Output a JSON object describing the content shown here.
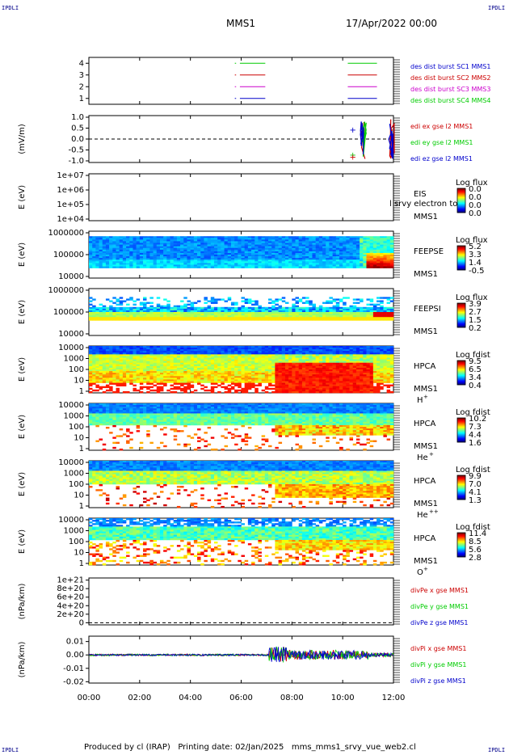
{
  "header": {
    "mission": "MMS1",
    "date": "17/Apr/2022 00:00",
    "corner_label": "IPDLI"
  },
  "footer": {
    "text": "Produced by cl (IRAP)   Printing date: 02/Jan/2025   mms_mms1_srvy_vue_web2.cl"
  },
  "colors": {
    "blue": "#0000cc",
    "red": "#cc0000",
    "green": "#00cc00",
    "magenta": "#cc00cc"
  },
  "chart_data": [
    {
      "type": "line",
      "panel": "burst",
      "ylim": [
        0.5,
        4.5
      ],
      "yticks": [
        "1",
        "2",
        "3",
        "4"
      ],
      "legend": [
        {
          "label": "des dist burst SC1 MMS1",
          "color": "#0000cc",
          "y": 1
        },
        {
          "label": "des dist burst SC2 MMS2",
          "color": "#cc0000",
          "y": 3
        },
        {
          "label": "des dist burst SC3 MMS3",
          "color": "#cc00cc",
          "y": 2
        },
        {
          "label": "des dist burst SC4 MMS4",
          "color": "#00cc00",
          "y": 4
        }
      ],
      "intervals": [
        [
          5.75,
          5.8
        ],
        [
          5.95,
          6.95
        ],
        [
          10.2,
          11.35
        ]
      ]
    },
    {
      "type": "line",
      "panel": "edi",
      "ylabel": "(mV/m)",
      "ylim": [
        -1.3,
        1.3
      ],
      "yticks": [
        "1.0",
        "0.5",
        "0.0",
        "-0.5",
        "-1.0"
      ],
      "legend": [
        {
          "label": "edi ex gse l2 MMS1",
          "color": "#cc0000"
        },
        {
          "label": "edi ey gse l2 MMS1",
          "color": "#00cc00"
        },
        {
          "label": "edi ez gse l2 MMS1",
          "color": "#0000cc"
        }
      ]
    },
    {
      "type": "heatmap",
      "panel": "EIS",
      "ylabel": "E (eV)",
      "yticks": [
        "1e+07",
        "1e+06",
        "1e+05",
        "1e+04"
      ],
      "instrument": "EIS",
      "spacecraft": "MMS1",
      "overlay_text": "l srvy electron to",
      "cbar_title": "Log flux",
      "cbar_ticks": [
        "0.0",
        "0.0",
        "0.0",
        "0.0"
      ]
    },
    {
      "type": "heatmap",
      "panel": "FEEPSE",
      "ylabel": "E (eV)",
      "yticks": [
        "1000000",
        "100000",
        "10000"
      ],
      "instrument": "FEEPSE",
      "spacecraft": "MMS1",
      "cbar_title": "Log flux",
      "cbar_ticks": [
        "5.2",
        "3.3",
        "1.4",
        "-0.5"
      ]
    },
    {
      "type": "heatmap",
      "panel": "FEEPSI",
      "ylabel": "E (eV)",
      "yticks": [
        "1000000",
        "100000",
        "10000"
      ],
      "instrument": "FEEPSI",
      "spacecraft": "MMS1",
      "cbar_title": "Log flux",
      "cbar_ticks": [
        "3.9",
        "2.7",
        "1.5",
        "0.2"
      ]
    },
    {
      "type": "heatmap",
      "panel": "HPCA H+",
      "ylabel": "E (eV)",
      "yticks": [
        "10000",
        "1000",
        "100",
        "10",
        "1"
      ],
      "instrument": "HPCA",
      "spacecraft": "MMS1",
      "species": "H",
      "charge": "+",
      "cbar_title": "Log fdist",
      "cbar_ticks": [
        "9.5",
        "6.5",
        "3.4",
        "0.4"
      ]
    },
    {
      "type": "heatmap",
      "panel": "HPCA He+",
      "ylabel": "E (eV)",
      "yticks": [
        "10000",
        "1000",
        "100",
        "10",
        "1"
      ],
      "instrument": "HPCA",
      "spacecraft": "MMS1",
      "species": "He",
      "charge": "+",
      "cbar_title": "Log fdist",
      "cbar_ticks": [
        "10.2",
        "7.3",
        "4.4",
        "1.6"
      ]
    },
    {
      "type": "heatmap",
      "panel": "HPCA He++",
      "ylabel": "E (eV)",
      "yticks": [
        "10000",
        "1000",
        "100",
        "10",
        "1"
      ],
      "instrument": "HPCA",
      "spacecraft": "MMS1",
      "species": "He",
      "charge": "++",
      "cbar_title": "Log fdist",
      "cbar_ticks": [
        "9.9",
        "7.0",
        "4.1",
        "1.3"
      ]
    },
    {
      "type": "heatmap",
      "panel": "HPCA O+",
      "ylabel": "E (eV)",
      "yticks": [
        "10000",
        "1000",
        "100",
        "10",
        "1"
      ],
      "instrument": "HPCA",
      "spacecraft": "MMS1",
      "species": "O",
      "charge": "+",
      "cbar_title": "Log fdist",
      "cbar_ticks": [
        "11.4",
        "8.5",
        "5.6",
        "2.8"
      ]
    },
    {
      "type": "line",
      "panel": "divPe",
      "ylabel": "(nPa/km)",
      "ylim": [
        -5e+19,
        1.05e+21
      ],
      "yticks": [
        "1e+21",
        "8e+20",
        "6e+20",
        "4e+20",
        "2e+20",
        "0"
      ],
      "legend": [
        {
          "label": "divPe x gse MMS1",
          "color": "#cc0000"
        },
        {
          "label": "divPe y gse MMS1",
          "color": "#00cc00"
        },
        {
          "label": "divPe z gse MMS1",
          "color": "#0000cc"
        }
      ]
    },
    {
      "type": "line",
      "panel": "divPi",
      "ylabel": "(nPa/km)",
      "ylim": [
        -0.021,
        0.014
      ],
      "yticks": [
        "0.01",
        "0.00",
        "-0.01",
        "-0.02"
      ],
      "legend": [
        {
          "label": "divPi x gse MMS1",
          "color": "#cc0000"
        },
        {
          "label": "divPi y gse MMS1",
          "color": "#00cc00"
        },
        {
          "label": "divPi z gse MMS1",
          "color": "#0000cc"
        }
      ]
    }
  ],
  "xaxis": {
    "xlim": [
      0,
      12
    ],
    "ticks": [
      "00:00",
      "02:00",
      "04:00",
      "06:00",
      "08:00",
      "10:00",
      "12:00"
    ]
  }
}
